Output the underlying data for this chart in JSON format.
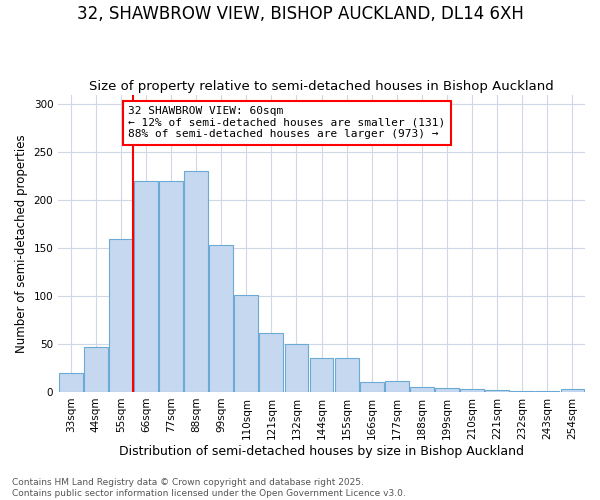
{
  "title": "32, SHAWBROW VIEW, BISHOP AUCKLAND, DL14 6XH",
  "subtitle": "Size of property relative to semi-detached houses in Bishop Auckland",
  "xlabel": "Distribution of semi-detached houses by size in Bishop Auckland",
  "ylabel": "Number of semi-detached properties",
  "categories": [
    "33sqm",
    "44sqm",
    "55sqm",
    "66sqm",
    "77sqm",
    "88sqm",
    "99sqm",
    "110sqm",
    "121sqm",
    "132sqm",
    "144sqm",
    "155sqm",
    "166sqm",
    "177sqm",
    "188sqm",
    "199sqm",
    "210sqm",
    "221sqm",
    "232sqm",
    "243sqm",
    "254sqm"
  ],
  "values": [
    20,
    47,
    160,
    220,
    220,
    230,
    153,
    101,
    62,
    50,
    35,
    35,
    10,
    11,
    5,
    4,
    3,
    2,
    1,
    1,
    3
  ],
  "bar_color": "#c5d8f0",
  "bar_edge_color": "#6aaad4",
  "vline_x_index": 2,
  "vline_color": "red",
  "annotation_text": "32 SHAWBROW VIEW: 60sqm\n← 12% of semi-detached houses are smaller (131)\n88% of semi-detached houses are larger (973) →",
  "annotation_box_color": "white",
  "annotation_box_edge": "red",
  "ylim": [
    0,
    310
  ],
  "yticks": [
    0,
    50,
    100,
    150,
    200,
    250,
    300
  ],
  "plot_bg_color": "#ffffff",
  "fig_bg_color": "#ffffff",
  "grid_color": "#d0d8e8",
  "footer1": "Contains HM Land Registry data © Crown copyright and database right 2025.",
  "footer2": "Contains public sector information licensed under the Open Government Licence v3.0.",
  "title_fontsize": 12,
  "subtitle_fontsize": 9.5,
  "xlabel_fontsize": 9,
  "ylabel_fontsize": 8.5,
  "tick_fontsize": 7.5,
  "footer_fontsize": 6.5,
  "ann_fontsize": 8
}
